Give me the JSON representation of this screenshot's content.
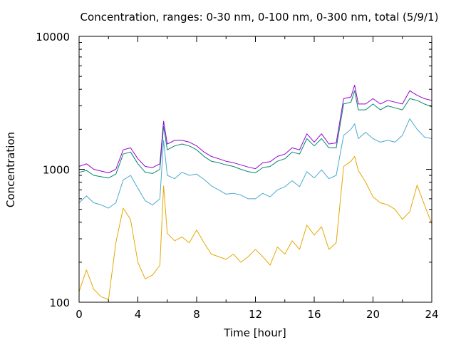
{
  "chart_data": {
    "type": "line",
    "title": "Concentration, ranges: 0-30 nm, 0-100 nm, 0-300 nm, total (5/9/1)",
    "xlabel": "Time [hour]",
    "ylabel": "Concentration",
    "xlim": [
      0,
      24
    ],
    "ylim": [
      100,
      10000
    ],
    "yscale": "log",
    "grid": false,
    "legend": "none",
    "xticks": [
      0,
      4,
      8,
      12,
      16,
      20,
      24
    ],
    "xtick_labels": [
      "0",
      "4",
      "8",
      "12",
      "16",
      "20",
      "24"
    ],
    "yticks": [
      100,
      1000,
      10000
    ],
    "ytick_labels": [
      "100",
      "1000",
      "10000"
    ],
    "x": [
      0,
      0.5,
      1,
      1.5,
      2,
      2.5,
      3,
      3.5,
      4,
      4.5,
      5,
      5.5,
      5.75,
      6,
      6.5,
      7,
      7.5,
      8,
      8.5,
      9,
      9.5,
      10,
      10.5,
      11,
      11.5,
      12,
      12.5,
      13,
      13.5,
      14,
      14.5,
      15,
      15.5,
      16,
      16.5,
      17,
      17.5,
      18,
      18.5,
      18.75,
      19,
      19.5,
      20,
      20.5,
      21,
      21.5,
      22,
      22.5,
      23,
      23.5,
      24
    ],
    "series": [
      {
        "color": "#e6a800",
        "values": [
          120,
          175,
          125,
          110,
          105,
          280,
          510,
          420,
          200,
          150,
          160,
          190,
          750,
          330,
          290,
          310,
          280,
          350,
          280,
          230,
          220,
          210,
          230,
          200,
          220,
          250,
          220,
          190,
          260,
          230,
          290,
          250,
          380,
          320,
          370,
          250,
          280,
          1050,
          1150,
          1250,
          980,
          800,
          620,
          560,
          540,
          500,
          420,
          480,
          760,
          540,
          390
        ]
      },
      {
        "color": "#4aa8d0",
        "values": [
          560,
          630,
          560,
          540,
          510,
          560,
          830,
          900,
          720,
          580,
          540,
          600,
          1650,
          900,
          850,
          950,
          900,
          920,
          840,
          750,
          700,
          650,
          660,
          640,
          600,
          600,
          660,
          620,
          700,
          740,
          820,
          740,
          960,
          860,
          990,
          850,
          900,
          1800,
          2000,
          2200,
          1700,
          1900,
          1700,
          1600,
          1650,
          1600,
          1800,
          2400,
          2000,
          1750,
          1700
        ]
      },
      {
        "color": "#00886b",
        "values": [
          950,
          980,
          900,
          880,
          860,
          920,
          1300,
          1350,
          1100,
          950,
          930,
          1000,
          2100,
          1400,
          1500,
          1550,
          1500,
          1400,
          1250,
          1150,
          1120,
          1080,
          1050,
          1000,
          960,
          940,
          1030,
          1050,
          1150,
          1200,
          1350,
          1300,
          1700,
          1500,
          1700,
          1450,
          1450,
          3100,
          3200,
          3900,
          2800,
          2800,
          3100,
          2800,
          3000,
          2900,
          2800,
          3400,
          3300,
          3100,
          2950
        ]
      },
      {
        "color": "#9400d3",
        "values": [
          1050,
          1100,
          1000,
          970,
          940,
          1000,
          1400,
          1450,
          1200,
          1050,
          1030,
          1100,
          2300,
          1550,
          1650,
          1650,
          1600,
          1500,
          1350,
          1250,
          1200,
          1150,
          1120,
          1080,
          1040,
          1010,
          1120,
          1140,
          1250,
          1300,
          1450,
          1400,
          1850,
          1600,
          1850,
          1550,
          1580,
          3400,
          3500,
          4300,
          3100,
          3100,
          3400,
          3100,
          3300,
          3200,
          3100,
          3900,
          3600,
          3400,
          3300
        ]
      }
    ]
  }
}
